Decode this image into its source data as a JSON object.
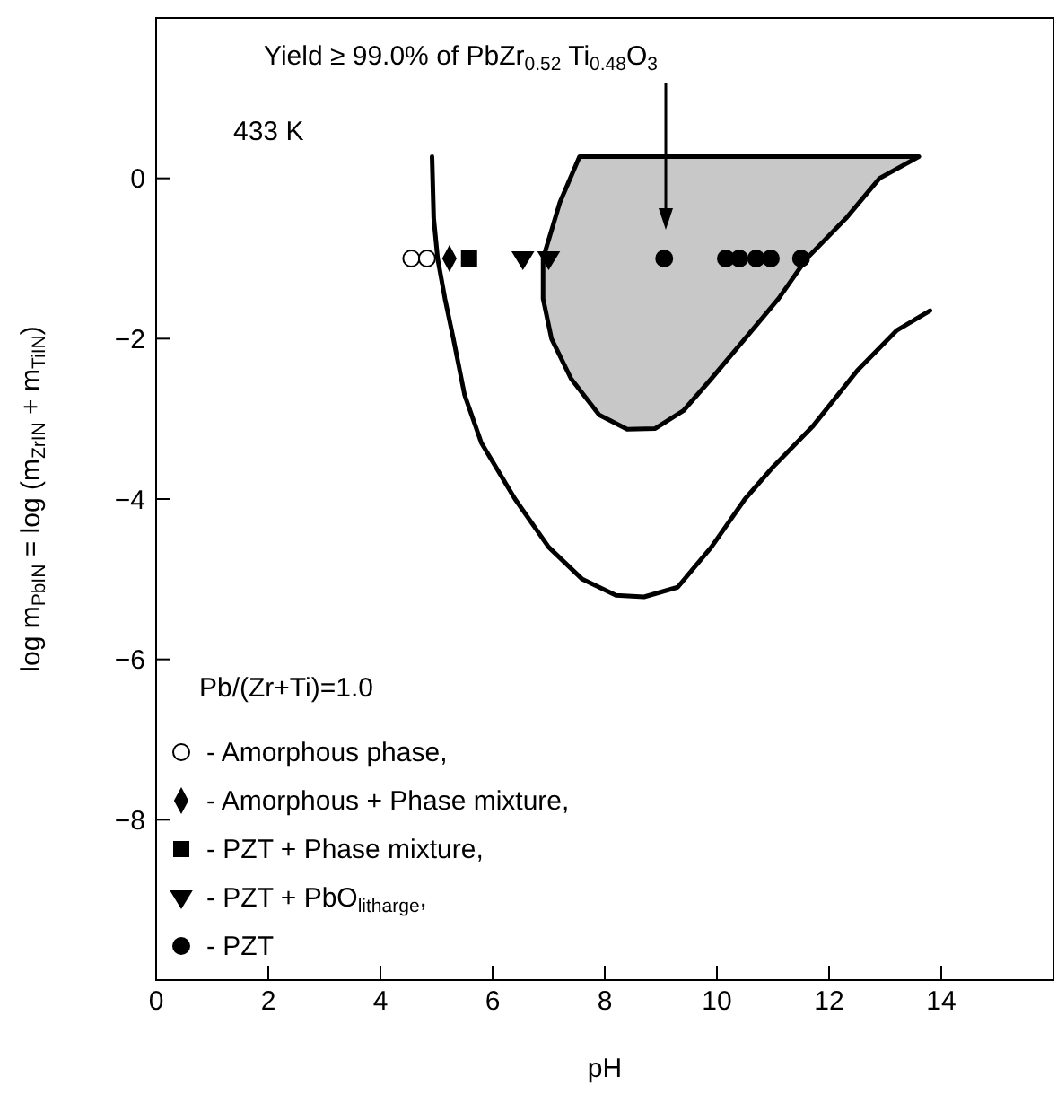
{
  "chart_data": {
    "type": "scatter",
    "xlabel": "pH",
    "ylabel": "log m$_{PbIN}$ = log (m$_{ZrIN}$ + m$_{TiIN}$)",
    "xlim": [
      0,
      16
    ],
    "ylim": [
      -10,
      2
    ],
    "xticks": [
      0,
      2,
      4,
      6,
      8,
      10,
      12,
      14
    ],
    "yticks": [
      -8,
      -6,
      -4,
      -2,
      0
    ],
    "legend": "bottom left",
    "annotations": [
      "433 K",
      "Yield ≥ 99.0% of PbZr$_{0.52}$ Ti$_{0.48}$O$_{3}$",
      "Pb/(Zr+Ti)=1.0"
    ],
    "series": [
      {
        "type": "area",
        "color": "#c8c8c8",
        "x": [
          7.55,
          7.2,
          6.9,
          6.9,
          7.05,
          7.4,
          7.9,
          8.4,
          8.9,
          9.4,
          9.9,
          10.5,
          11.1,
          11.6,
          12.3,
          12.9,
          13.6
        ],
        "values": [
          0.27,
          -0.3,
          -1,
          -1.5,
          -2,
          -2.5,
          -2.95,
          -3.13,
          -3.12,
          -2.9,
          -2.5,
          -2,
          -1.5,
          -1,
          -0.5,
          0,
          0.27
        ]
      },
      {
        "type": "line",
        "color": "#000000",
        "marker": "none",
        "x": [
          4.92,
          4.95,
          5.02,
          5.15,
          5.3,
          5.5,
          5.8,
          6.4,
          7.0,
          7.6,
          8.2,
          8.7,
          9.3,
          9.9,
          10.5,
          11.0,
          11.7,
          12.5,
          13.2,
          13.8
        ],
        "values": [
          0.27,
          -0.5,
          -1,
          -1.5,
          -2,
          -2.7,
          -3.3,
          -4.0,
          -4.6,
          -5.0,
          -5.2,
          -5.22,
          -5.1,
          -4.6,
          -4.0,
          -3.6,
          -3.1,
          -2.4,
          -1.9,
          -1.65
        ]
      },
      {
        "name": "- Amorphous phase,",
        "marker": "circle",
        "color": "#ffffff",
        "x": [
          4.55,
          4.83
        ],
        "values": [
          -1,
          -1
        ]
      },
      {
        "name": "- Amorphous + Phase mixture,",
        "marker": "diamond",
        "color": "#000000",
        "x": [
          5.23
        ],
        "values": [
          -1
        ]
      },
      {
        "name": "- PZT + Phase mixture,",
        "marker": "square",
        "color": "#000000",
        "x": [
          5.58
        ],
        "values": [
          -1
        ]
      },
      {
        "name": "- PZT + PbO$_{litharge}$,",
        "marker": "triangle",
        "color": "#000000",
        "x": [
          6.54,
          7.0
        ],
        "values": [
          -1,
          -1
        ]
      },
      {
        "name": "- PZT",
        "marker": "circle",
        "color": "#000000",
        "x": [
          9.06,
          10.16,
          10.4,
          10.7,
          10.96,
          11.5
        ],
        "values": [
          -1,
          -1,
          -1,
          -1,
          -1,
          -1
        ]
      }
    ]
  }
}
